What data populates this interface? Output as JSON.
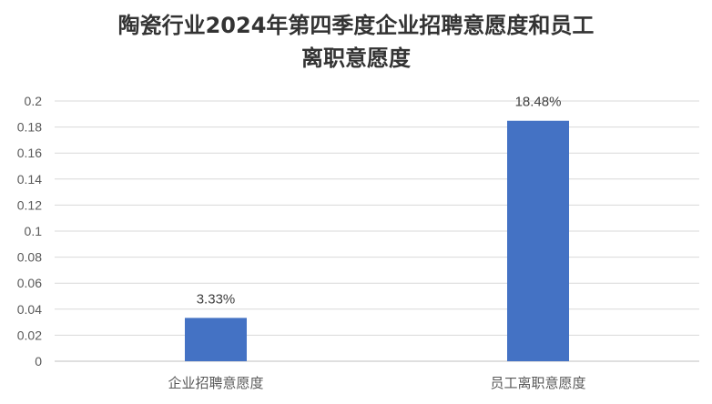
{
  "chart_data": {
    "type": "bar",
    "title_line1": "陶瓷行业2024年第四季度企业招聘意愿度和员工",
    "title_line2": "离职意愿度",
    "categories": [
      "企业招聘意愿度",
      "员工离职意愿度"
    ],
    "values": [
      0.0333,
      0.1848
    ],
    "data_labels": [
      "3.33%",
      "18.48%"
    ],
    "ylim": [
      0,
      0.2
    ],
    "yticks": [
      "0",
      "0.02",
      "0.04",
      "0.06",
      "0.08",
      "0.1",
      "0.12",
      "0.14",
      "0.16",
      "0.18",
      "0.2"
    ],
    "grid": true,
    "bar_color": "#4472C4"
  }
}
